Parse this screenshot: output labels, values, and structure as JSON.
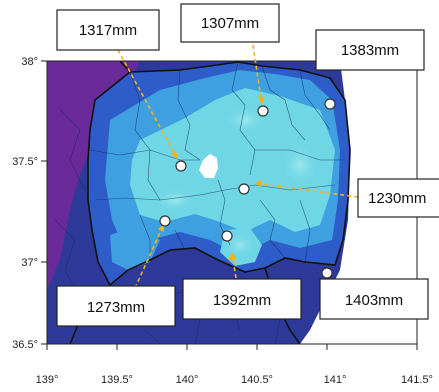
{
  "map": {
    "x_ticks": [
      "139°",
      "139.5°",
      "140°",
      "140.5°",
      "141°",
      "141.5°"
    ],
    "y_ticks": [
      "38°",
      "37.5°",
      "37°",
      "36.5°"
    ],
    "colors": {
      "sea": "#ffffff",
      "outside": "#2d3a9a",
      "outside_west": "#6a2a9a",
      "low": "#2e5cc8",
      "mid": "#3ea0e0",
      "high": "#6fd6e6",
      "peak": "#9be8ee",
      "arrow": "#f2b21c"
    },
    "labels": [
      {
        "id": "label-1317",
        "text": "1317mm"
      },
      {
        "id": "label-1307",
        "text": "1307mm"
      },
      {
        "id": "label-1383",
        "text": "1383mm"
      },
      {
        "id": "label-1230",
        "text": "1230mm"
      },
      {
        "id": "label-1273",
        "text": "1273mm"
      },
      {
        "id": "label-1392",
        "text": "1392mm"
      },
      {
        "id": "label-1403",
        "text": "1403mm"
      }
    ]
  }
}
